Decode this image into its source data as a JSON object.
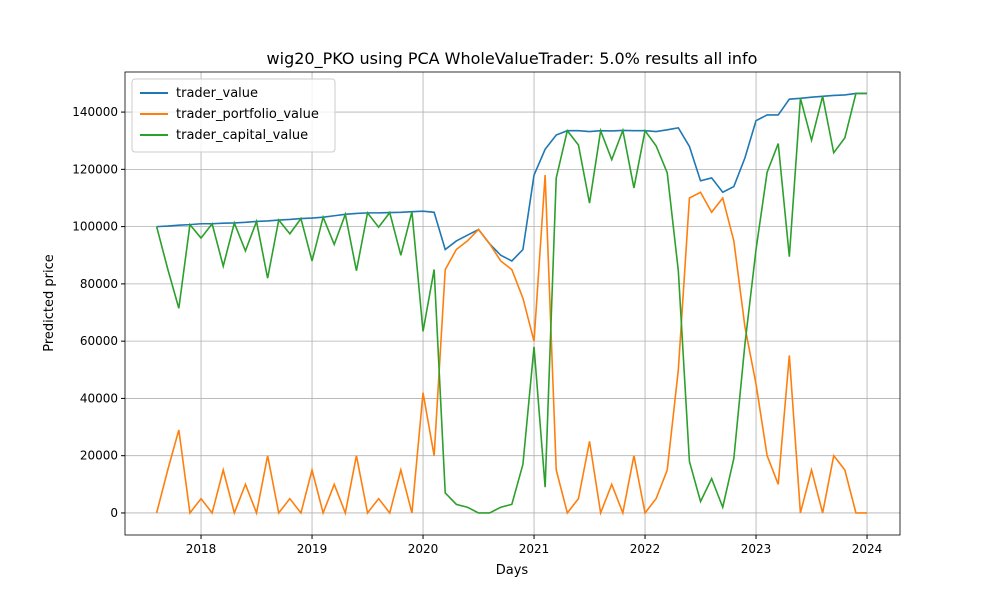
{
  "chart_data": {
    "type": "line",
    "title": "wig20_PKO using PCA WholeValueTrader: 5.0% results all info",
    "xlabel": "Days",
    "ylabel": "Predicted price",
    "x": [
      2017.6,
      2017.7,
      2017.8,
      2017.9,
      2018.0,
      2018.1,
      2018.2,
      2018.3,
      2018.4,
      2018.5,
      2018.6,
      2018.7,
      2018.8,
      2018.9,
      2019.0,
      2019.1,
      2019.2,
      2019.3,
      2019.4,
      2019.5,
      2019.6,
      2019.7,
      2019.8,
      2019.9,
      2020.0,
      2020.1,
      2020.2,
      2020.3,
      2020.4,
      2020.5,
      2020.6,
      2020.7,
      2020.8,
      2020.9,
      2021.0,
      2021.1,
      2021.2,
      2021.3,
      2021.4,
      2021.5,
      2021.6,
      2021.7,
      2021.8,
      2021.9,
      2022.0,
      2022.1,
      2022.2,
      2022.3,
      2022.4,
      2022.5,
      2022.6,
      2022.7,
      2022.8,
      2022.9,
      2023.0,
      2023.1,
      2023.2,
      2023.3,
      2023.4,
      2023.5,
      2023.6,
      2023.7,
      2023.8,
      2023.9,
      2024.0
    ],
    "series": [
      {
        "name": "trader_value",
        "color": "#1f77b4",
        "values": [
          100000,
          100200,
          100500,
          100700,
          101000,
          101000,
          101200,
          101300,
          101500,
          101800,
          102000,
          102300,
          102500,
          102800,
          103000,
          103300,
          103800,
          104300,
          104600,
          104800,
          104800,
          104900,
          105000,
          105200,
          105400,
          105000,
          92000,
          95000,
          97000,
          99000,
          94000,
          90000,
          88000,
          92000,
          118000,
          127000,
          132000,
          133500,
          133500,
          133200,
          133500,
          133400,
          133600,
          133500,
          133500,
          133200,
          133800,
          134500,
          128000,
          116000,
          117000,
          112000,
          114000,
          124000,
          137000,
          139000,
          139000,
          144500,
          144800,
          145200,
          145500,
          145800,
          146000,
          146500,
          146500
        ]
      },
      {
        "name": "trader_portfolio_value",
        "color": "#ff7f0e",
        "values": [
          0,
          15000,
          29000,
          0,
          5000,
          0,
          15000,
          0,
          10000,
          0,
          20000,
          0,
          5000,
          0,
          15000,
          0,
          10000,
          0,
          20000,
          0,
          5000,
          0,
          15000,
          0,
          42000,
          20000,
          85000,
          92000,
          95000,
          99000,
          94000,
          88000,
          85000,
          75000,
          60000,
          118000,
          15000,
          0,
          5000,
          25000,
          0,
          10000,
          0,
          20000,
          0,
          5000,
          15000,
          50000,
          110000,
          112000,
          105000,
          110000,
          95000,
          65000,
          45000,
          20000,
          10000,
          55000,
          0,
          15000,
          0,
          20000,
          15000,
          0,
          0
        ]
      },
      {
        "name": "trader_capital_value",
        "color": "#2ca02c",
        "values": [
          100000,
          85200,
          71500,
          100700,
          96000,
          101000,
          86200,
          101300,
          91500,
          101800,
          82000,
          102300,
          97500,
          102800,
          88000,
          103300,
          93800,
          104300,
          84600,
          104800,
          99800,
          104900,
          90000,
          105200,
          63400,
          85000,
          7000,
          3000,
          2000,
          0,
          0,
          2000,
          3000,
          17000,
          58000,
          9000,
          117000,
          133500,
          128500,
          108200,
          133500,
          123400,
          133600,
          113500,
          133500,
          128200,
          118800,
          84500,
          18000,
          4000,
          12000,
          2000,
          19000,
          59000,
          92000,
          119000,
          129000,
          89500,
          144800,
          130200,
          145500,
          125800,
          131000,
          146500,
          146500
        ]
      }
    ],
    "xlim": [
      2017.315,
      2024.297
    ],
    "xticks": [
      2018,
      2019,
      2020,
      2021,
      2022,
      2023,
      2024
    ],
    "ylim": [
      -7700,
      154000
    ],
    "yticks": [
      0,
      20000,
      40000,
      60000,
      80000,
      100000,
      120000,
      140000
    ],
    "grid": true,
    "legend": "upper-left"
  }
}
